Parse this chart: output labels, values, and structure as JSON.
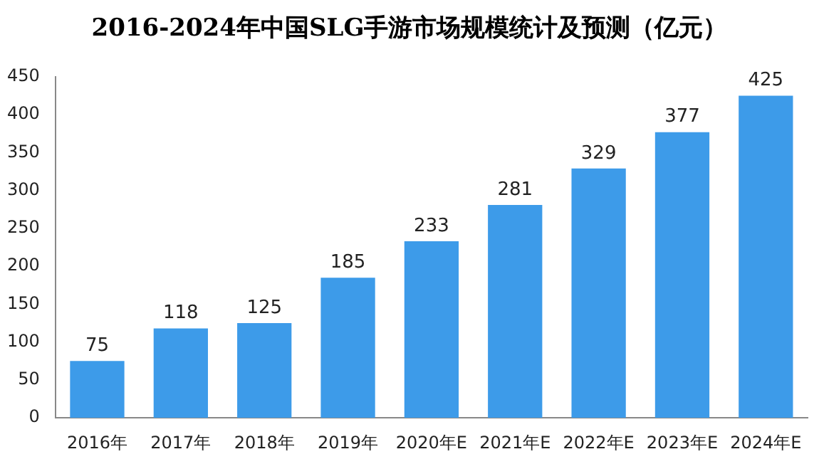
{
  "chart_data": {
    "type": "bar",
    "title": "2016-2024年中国SLG手游市场规模统计及预测（亿元）",
    "categories": [
      "2016年",
      "2017年",
      "2018年",
      "2019年",
      "2020年E",
      "2021年E",
      "2022年E",
      "2023年E",
      "2024年E"
    ],
    "values": [
      75,
      118,
      125,
      185,
      233,
      281,
      329,
      377,
      425
    ],
    "color": "#3d9be9",
    "ylim": [
      0,
      450
    ],
    "yticks": [
      0,
      50,
      100,
      150,
      200,
      250,
      300,
      350,
      400,
      450
    ],
    "grid": false,
    "data_labels": true
  }
}
